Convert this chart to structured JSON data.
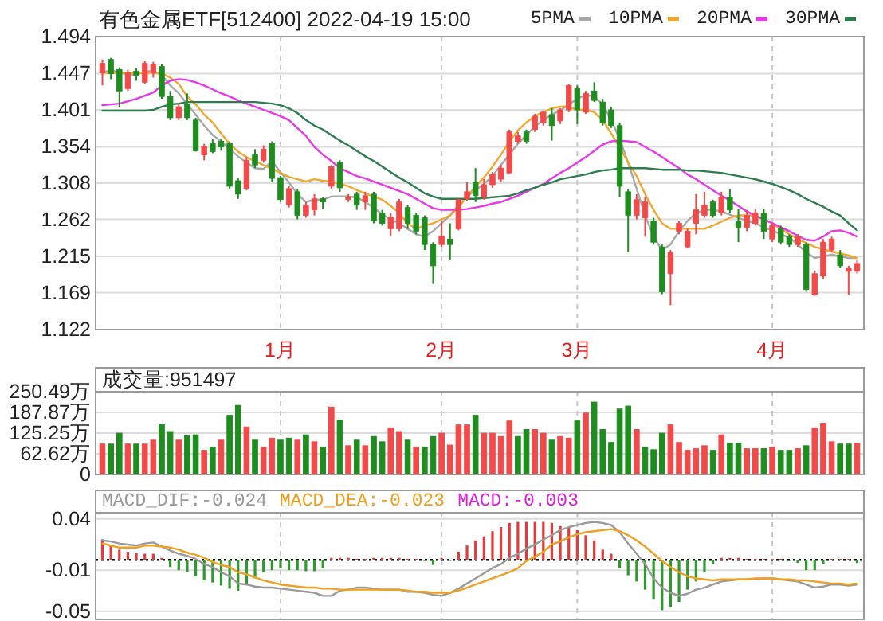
{
  "chart_data": [
    {
      "type": "candlestick",
      "title": "有色金属ETF[512400]  2022-04-19 15:00",
      "legend": "top right",
      "grid": true,
      "categories": [
        null,
        null,
        null,
        null,
        null,
        null,
        null,
        null,
        null,
        null,
        null,
        null,
        null,
        null,
        null,
        null,
        null,
        null,
        null,
        null,
        null,
        "1月",
        null,
        null,
        null,
        null,
        null,
        null,
        null,
        null,
        null,
        null,
        null,
        null,
        null,
        null,
        null,
        null,
        null,
        null,
        "2月",
        null,
        null,
        null,
        null,
        null,
        null,
        null,
        null,
        null,
        null,
        null,
        null,
        null,
        null,
        null,
        "3月",
        null,
        null,
        null,
        null,
        null,
        null,
        null,
        null,
        null,
        null,
        null,
        null,
        null,
        null,
        null,
        null,
        null,
        null,
        null,
        null,
        null,
        null,
        "4月",
        null,
        null,
        null,
        null,
        null,
        null,
        null,
        null,
        null,
        null
      ],
      "ohlc": [
        [
          1.448,
          1.465,
          1.432,
          1.46
        ],
        [
          1.465,
          1.467,
          1.44,
          1.447
        ],
        [
          1.452,
          1.455,
          1.405,
          1.425
        ],
        [
          1.428,
          1.452,
          1.425,
          1.448
        ],
        [
          1.45,
          1.454,
          1.438,
          1.445
        ],
        [
          1.436,
          1.463,
          1.434,
          1.46
        ],
        [
          1.448,
          1.462,
          1.442,
          1.459
        ],
        [
          1.456,
          1.459,
          1.415,
          1.418
        ],
        [
          1.418,
          1.425,
          1.388,
          1.391
        ],
        [
          1.391,
          1.409,
          1.388,
          1.405
        ],
        [
          1.408,
          1.422,
          1.388,
          1.391
        ],
        [
          1.388,
          1.391,
          1.348,
          1.349
        ],
        [
          1.344,
          1.358,
          1.337,
          1.354
        ],
        [
          1.358,
          1.364,
          1.346,
          1.348
        ],
        [
          1.361,
          1.364,
          1.349,
          1.354
        ],
        [
          1.358,
          1.361,
          1.301,
          1.304
        ],
        [
          1.311,
          1.314,
          1.288,
          1.294
        ],
        [
          1.301,
          1.341,
          1.299,
          1.337
        ],
        [
          1.344,
          1.351,
          1.327,
          1.331
        ],
        [
          1.337,
          1.356,
          1.334,
          1.351
        ],
        [
          1.358,
          1.361,
          1.309,
          1.314
        ],
        [
          1.315,
          1.317,
          1.284,
          1.287
        ],
        [
          1.28,
          1.304,
          1.277,
          1.301
        ],
        [
          1.297,
          1.301,
          1.262,
          1.267
        ],
        [
          1.267,
          1.284,
          1.264,
          1.28
        ],
        [
          1.274,
          1.294,
          1.267,
          1.288
        ],
        [
          1.288,
          1.29,
          1.275,
          1.284
        ],
        [
          1.304,
          1.331,
          1.301,
          1.329
        ],
        [
          1.334,
          1.337,
          1.297,
          1.302
        ],
        [
          1.287,
          1.294,
          1.284,
          1.29
        ],
        [
          1.294,
          1.297,
          1.274,
          1.28
        ],
        [
          1.284,
          1.297,
          1.274,
          1.292
        ],
        [
          1.294,
          1.297,
          1.257,
          1.26
        ],
        [
          1.27,
          1.274,
          1.254,
          1.257
        ],
        [
          1.25,
          1.27,
          1.241,
          1.265
        ],
        [
          1.25,
          1.288,
          1.247,
          1.284
        ],
        [
          1.277,
          1.28,
          1.25,
          1.257
        ],
        [
          1.267,
          1.27,
          1.243,
          1.247
        ],
        [
          1.264,
          1.267,
          1.223,
          1.23
        ],
        [
          1.23,
          1.233,
          1.18,
          1.203
        ],
        [
          1.23,
          1.26,
          1.227,
          1.241
        ],
        [
          1.237,
          1.257,
          1.21,
          1.23
        ],
        [
          1.25,
          1.288,
          1.248,
          1.287
        ],
        [
          1.288,
          1.309,
          1.286,
          1.297
        ],
        [
          1.309,
          1.327,
          1.284,
          1.292
        ],
        [
          1.29,
          1.313,
          1.287,
          1.306
        ],
        [
          1.306,
          1.322,
          1.302,
          1.319
        ],
        [
          1.313,
          1.331,
          1.309,
          1.327
        ],
        [
          1.321,
          1.376,
          1.319,
          1.373
        ],
        [
          1.361,
          1.373,
          1.358,
          1.368
        ],
        [
          1.373,
          1.376,
          1.358,
          1.361
        ],
        [
          1.376,
          1.396,
          1.373,
          1.393
        ],
        [
          1.385,
          1.4,
          1.381,
          1.398
        ],
        [
          1.395,
          1.403,
          1.362,
          1.381
        ],
        [
          1.387,
          1.403,
          1.383,
          1.401
        ],
        [
          1.401,
          1.434,
          1.398,
          1.432
        ],
        [
          1.428,
          1.432,
          1.383,
          1.401
        ],
        [
          1.398,
          1.425,
          1.396,
          1.422
        ],
        [
          1.425,
          1.436,
          1.411,
          1.413
        ],
        [
          1.411,
          1.415,
          1.381,
          1.385
        ],
        [
          1.401,
          1.405,
          1.378,
          1.381
        ],
        [
          1.381,
          1.385,
          1.29,
          1.304
        ],
        [
          1.297,
          1.301,
          1.22,
          1.267
        ],
        [
          1.267,
          1.294,
          1.262,
          1.287
        ],
        [
          1.264,
          1.29,
          1.24,
          1.284
        ],
        [
          1.26,
          1.264,
          1.23,
          1.233
        ],
        [
          1.227,
          1.23,
          1.167,
          1.17
        ],
        [
          1.193,
          1.223,
          1.153,
          1.22
        ],
        [
          1.247,
          1.26,
          1.243,
          1.257
        ],
        [
          1.227,
          1.25,
          1.225,
          1.247
        ],
        [
          1.257,
          1.294,
          1.243,
          1.274
        ],
        [
          1.267,
          1.297,
          1.264,
          1.28
        ],
        [
          1.284,
          1.287,
          1.264,
          1.267
        ],
        [
          1.27,
          1.297,
          1.267,
          1.29
        ],
        [
          1.29,
          1.301,
          1.27,
          1.274
        ],
        [
          1.26,
          1.275,
          1.233,
          1.252
        ],
        [
          1.252,
          1.274,
          1.247,
          1.267
        ],
        [
          1.257,
          1.275,
          1.254,
          1.27
        ],
        [
          1.27,
          1.275,
          1.237,
          1.247
        ],
        [
          1.237,
          1.257,
          1.233,
          1.254
        ],
        [
          1.25,
          1.254,
          1.23,
          1.233
        ],
        [
          1.24,
          1.243,
          1.227,
          1.23
        ],
        [
          1.23,
          1.243,
          1.227,
          1.24
        ],
        [
          1.23,
          1.233,
          1.17,
          1.173
        ],
        [
          1.166,
          1.196,
          1.165,
          1.193
        ],
        [
          1.19,
          1.237,
          1.186,
          1.233
        ],
        [
          1.223,
          1.24,
          1.22,
          1.237
        ],
        [
          1.217,
          1.223,
          1.2,
          1.203
        ],
        [
          1.196,
          1.203,
          1.166,
          1.2
        ],
        [
          1.196,
          1.21,
          1.193,
          1.206
        ]
      ],
      "colors": [
        "#f04a4a",
        "#1e8c1e",
        "#1e8c1e",
        "#f04a4a",
        "#1e8c1e",
        "#f04a4a",
        "#f04a4a",
        "#1e8c1e",
        "#1e8c1e",
        "#f04a4a",
        "#1e8c1e",
        "#1e8c1e",
        "#f04a4a",
        "#1e8c1e",
        "#1e8c1e",
        "#1e8c1e",
        "#1e8c1e",
        "#f04a4a",
        "#1e8c1e",
        "#f04a4a",
        "#1e8c1e",
        "#1e8c1e",
        "#f04a4a",
        "#1e8c1e",
        "#f04a4a",
        "#f04a4a",
        "#1e8c1e",
        "#f04a4a",
        "#1e8c1e",
        "#f04a4a",
        "#1e8c1e",
        "#f04a4a",
        "#1e8c1e",
        "#1e8c1e",
        "#f04a4a",
        "#f04a4a",
        "#1e8c1e",
        "#1e8c1e",
        "#1e8c1e",
        "#1e8c1e",
        "#f04a4a",
        "#1e8c1e",
        "#f04a4a",
        "#f04a4a",
        "#1e8c1e",
        "#f04a4a",
        "#f04a4a",
        "#f04a4a",
        "#f04a4a",
        "#f04a4a",
        "#1e8c1e",
        "#f04a4a",
        "#f04a4a",
        "#1e8c1e",
        "#f04a4a",
        "#f04a4a",
        "#1e8c1e",
        "#f04a4a",
        "#1e8c1e",
        "#1e8c1e",
        "#1e8c1e",
        "#1e8c1e",
        "#1e8c1e",
        "#f04a4a",
        "#f04a4a",
        "#1e8c1e",
        "#1e8c1e",
        "#f04a4a",
        "#f04a4a",
        "#f04a4a",
        "#f04a4a",
        "#f04a4a",
        "#1e8c1e",
        "#f04a4a",
        "#1e8c1e",
        "#1e8c1e",
        "#f04a4a",
        "#f04a4a",
        "#1e8c1e",
        "#f04a4a",
        "#1e8c1e",
        "#1e8c1e",
        "#f04a4a",
        "#1e8c1e",
        "#f04a4a",
        "#f04a4a",
        "#f04a4a",
        "#1e8c1e",
        "#f04a4a",
        "#f04a4a"
      ],
      "series": [
        {
          "type": "line",
          "name": "5PMA",
          "color": "#a8a8a8",
          "values": [
            1.448,
            1.452,
            1.448,
            1.447,
            1.445,
            1.45,
            1.45,
            1.445,
            1.432,
            1.422,
            1.408,
            1.395,
            1.381,
            1.369,
            1.361,
            1.351,
            1.342,
            1.334,
            1.327,
            1.326,
            1.336,
            1.322,
            1.309,
            1.294,
            1.284,
            1.287,
            1.287,
            1.291,
            1.291,
            1.291,
            1.29,
            1.284,
            1.277,
            1.268,
            1.262,
            1.257,
            1.25,
            1.243,
            1.24,
            1.247,
            1.257,
            1.267,
            1.28,
            1.291,
            1.299,
            1.307,
            1.317,
            1.331,
            1.344,
            1.358,
            1.369,
            1.38,
            1.388,
            1.395,
            1.4,
            1.408,
            1.415,
            1.42,
            1.418,
            1.408,
            1.388,
            1.364,
            1.334,
            1.301,
            1.267,
            1.24,
            1.223,
            1.23,
            1.247,
            1.26,
            1.27,
            1.274,
            1.274,
            1.272,
            1.268,
            1.264,
            1.26,
            1.257,
            1.252,
            1.248,
            1.243,
            1.239,
            1.23,
            1.22,
            1.213,
            1.215,
            1.217,
            1.215,
            1.213,
            1.213
          ]
        },
        {
          "type": "line",
          "name": "10PMA",
          "color": "#f0a830",
          "values": [
            1.448,
            1.448,
            1.448,
            1.448,
            1.448,
            1.448,
            1.448,
            1.447,
            1.442,
            1.434,
            1.418,
            1.408,
            1.395,
            1.385,
            1.371,
            1.358,
            1.348,
            1.341,
            1.336,
            1.331,
            1.326,
            1.321,
            1.316,
            1.313,
            1.31,
            1.313,
            1.311,
            1.31,
            1.307,
            1.304,
            1.299,
            1.295,
            1.291,
            1.287,
            1.279,
            1.27,
            1.257,
            1.25,
            1.254,
            1.257,
            1.262,
            1.267,
            1.277,
            1.291,
            1.304,
            1.315,
            1.329,
            1.344,
            1.361,
            1.375,
            1.385,
            1.393,
            1.398,
            1.403,
            1.405,
            1.405,
            1.401,
            1.401,
            1.398,
            1.388,
            1.371,
            1.354,
            1.334,
            1.317,
            1.294,
            1.274,
            1.257,
            1.25,
            1.25,
            1.25,
            1.25,
            1.25,
            1.254,
            1.259,
            1.264,
            1.267,
            1.267,
            1.267,
            1.262,
            1.257,
            1.25,
            1.243,
            1.237,
            1.232,
            1.227,
            1.224,
            1.221,
            1.219,
            1.216,
            1.213
          ]
        },
        {
          "type": "line",
          "name": "20PMA",
          "color": "#e838e8",
          "values": [
            1.407,
            1.408,
            1.409,
            1.412,
            1.415,
            1.419,
            1.423,
            1.432,
            1.438,
            1.44,
            1.439,
            1.436,
            1.432,
            1.427,
            1.422,
            1.418,
            1.413,
            1.409,
            1.405,
            1.401,
            1.397,
            1.393,
            1.388,
            1.378,
            1.368,
            1.354,
            1.344,
            1.336,
            1.327,
            1.322,
            1.317,
            1.314,
            1.31,
            1.306,
            1.302,
            1.298,
            1.294,
            1.288,
            1.282,
            1.276,
            1.274,
            1.274,
            1.274,
            1.275,
            1.277,
            1.279,
            1.282,
            1.284,
            1.288,
            1.292,
            1.297,
            1.302,
            1.307,
            1.314,
            1.321,
            1.327,
            1.334,
            1.341,
            1.349,
            1.357,
            1.361,
            1.362,
            1.361,
            1.36,
            1.354,
            1.348,
            1.341,
            1.334,
            1.327,
            1.319,
            1.313,
            1.306,
            1.299,
            1.292,
            1.286,
            1.279,
            1.272,
            1.267,
            1.262,
            1.257,
            1.252,
            1.247,
            1.241,
            1.236,
            1.235,
            1.24,
            1.247,
            1.248,
            1.245,
            1.24
          ]
        },
        {
          "type": "line",
          "name": "30PMA",
          "color": "#2e7d4f",
          "values": [
            1.4,
            1.4,
            1.4,
            1.4,
            1.4,
            1.4,
            1.401,
            1.405,
            1.408,
            1.409,
            1.411,
            1.411,
            1.411,
            1.411,
            1.411,
            1.411,
            1.411,
            1.411,
            1.411,
            1.41,
            1.409,
            1.407,
            1.403,
            1.397,
            1.388,
            1.381,
            1.376,
            1.369,
            1.362,
            1.356,
            1.349,
            1.342,
            1.336,
            1.329,
            1.322,
            1.315,
            1.309,
            1.302,
            1.295,
            1.291,
            1.288,
            1.288,
            1.288,
            1.288,
            1.288,
            1.289,
            1.29,
            1.291,
            1.292,
            1.295,
            1.299,
            1.302,
            1.306,
            1.309,
            1.313,
            1.315,
            1.317,
            1.319,
            1.322,
            1.324,
            1.325,
            1.327,
            1.327,
            1.327,
            1.327,
            1.326,
            1.325,
            1.325,
            1.325,
            1.324,
            1.324,
            1.323,
            1.322,
            1.321,
            1.319,
            1.317,
            1.315,
            1.313,
            1.31,
            1.307,
            1.303,
            1.299,
            1.294,
            1.288,
            1.283,
            1.278,
            1.272,
            1.267,
            1.257,
            1.248
          ]
        }
      ],
      "ylim": [
        1.122,
        1.494
      ],
      "yticks": [
        1.494,
        1.447,
        1.401,
        1.354,
        1.308,
        1.262,
        1.215,
        1.169,
        1.122
      ]
    },
    {
      "type": "bar",
      "grid": true,
      "tick_labels": "y",
      "annotations": [
        "成交量:951497"
      ],
      "categories": [
        null,
        null,
        null,
        null,
        null,
        null,
        null,
        null,
        null,
        null,
        null,
        null,
        null,
        null,
        null,
        null,
        null,
        null,
        null,
        null,
        null,
        null,
        null,
        null,
        null,
        null,
        null,
        null,
        null,
        null,
        null,
        null,
        null,
        null,
        null,
        null,
        null,
        null,
        null,
        null,
        null,
        null,
        null,
        null,
        null,
        null,
        null,
        null,
        null,
        null,
        null,
        null,
        null,
        null,
        null,
        null,
        null,
        null,
        null,
        null,
        null,
        null,
        null,
        null,
        null,
        null,
        null,
        null,
        null,
        null,
        null,
        null,
        null,
        null,
        null,
        null,
        null,
        null,
        null,
        null,
        null,
        null,
        null,
        null,
        null,
        null,
        null,
        null,
        null,
        null
      ],
      "values": [
        92,
        92,
        125,
        92,
        92,
        92,
        104,
        151,
        130,
        104,
        117,
        120,
        73,
        83,
        104,
        179,
        209,
        144,
        104,
        83,
        110,
        104,
        110,
        104,
        120,
        99,
        83,
        204,
        165,
        87,
        104,
        87,
        115,
        99,
        141,
        130,
        104,
        83,
        83,
        115,
        125,
        89,
        150,
        150,
        179,
        125,
        125,
        115,
        162,
        115,
        136,
        136,
        125,
        104,
        115,
        110,
        162,
        186,
        219,
        136,
        97,
        198,
        207,
        136,
        83,
        75,
        125,
        150,
        97,
        73,
        78,
        87,
        73,
        120,
        94,
        94,
        78,
        78,
        78,
        83,
        73,
        73,
        78,
        87,
        141,
        155,
        99,
        92,
        92,
        95
      ],
      "colors": [
        "#f04a4a",
        "#1e8c1e",
        "#1e8c1e",
        "#f04a4a",
        "#1e8c1e",
        "#f04a4a",
        "#f04a4a",
        "#1e8c1e",
        "#1e8c1e",
        "#f04a4a",
        "#1e8c1e",
        "#1e8c1e",
        "#f04a4a",
        "#1e8c1e",
        "#f04a4a",
        "#1e8c1e",
        "#1e8c1e",
        "#f04a4a",
        "#1e8c1e",
        "#f04a4a",
        "#f04a4a",
        "#1e8c1e",
        "#1e8c1e",
        "#f04a4a",
        "#1e8c1e",
        "#f04a4a",
        "#1e8c1e",
        "#f04a4a",
        "#1e8c1e",
        "#f04a4a",
        "#1e8c1e",
        "#f04a4a",
        "#1e8c1e",
        "#1e8c1e",
        "#f04a4a",
        "#f04a4a",
        "#1e8c1e",
        "#f04a4a",
        "#1e8c1e",
        "#1e8c1e",
        "#f04a4a",
        "#f04a4a",
        "#f04a4a",
        "#f04a4a",
        "#1e8c1e",
        "#f04a4a",
        "#f04a4a",
        "#f04a4a",
        "#f04a4a",
        "#1e8c1e",
        "#1e8c1e",
        "#f04a4a",
        "#f04a4a",
        "#1e8c1e",
        "#f04a4a",
        "#f04a4a",
        "#1e8c1e",
        "#f04a4a",
        "#1e8c1e",
        "#1e8c1e",
        "#1e8c1e",
        "#1e8c1e",
        "#1e8c1e",
        "#f04a4a",
        "#1e8c1e",
        "#1e8c1e",
        "#1e8c1e",
        "#f04a4a",
        "#f04a4a",
        "#f04a4a",
        "#f04a4a",
        "#f04a4a",
        "#1e8c1e",
        "#f04a4a",
        "#1e8c1e",
        "#1e8c1e",
        "#f04a4a",
        "#f04a4a",
        "#1e8c1e",
        "#f04a4a",
        "#1e8c1e",
        "#1e8c1e",
        "#f04a4a",
        "#1e8c1e",
        "#f04a4a",
        "#f04a4a",
        "#f04a4a",
        "#1e8c1e",
        "#1e8c1e",
        "#f04a4a"
      ],
      "ylim": [
        0,
        250.49
      ],
      "yticks": [
        0,
        {
          "value": 62.62,
          "label": "62.62万"
        },
        {
          "value": 125.25,
          "label": "125.25万"
        },
        {
          "value": 187.87,
          "label": "187.87万"
        },
        {
          "value": 250.49,
          "label": "250.49万"
        }
      ]
    },
    {
      "type": "bar",
      "grid": true,
      "tick_labels": "y",
      "legend": "top left",
      "categories": [
        null,
        null,
        null,
        null,
        null,
        null,
        null,
        null,
        null,
        null,
        null,
        null,
        null,
        null,
        null,
        null,
        null,
        null,
        null,
        null,
        null,
        null,
        null,
        null,
        null,
        null,
        null,
        null,
        null,
        null,
        null,
        null,
        null,
        null,
        null,
        null,
        null,
        null,
        null,
        null,
        null,
        null,
        null,
        null,
        null,
        null,
        null,
        null,
        null,
        null,
        null,
        null,
        null,
        null,
        null,
        null,
        null,
        null,
        null,
        null,
        null,
        null,
        null,
        null,
        null,
        null,
        null,
        null,
        null,
        null,
        null,
        null,
        null,
        null,
        null,
        null,
        null,
        null,
        null,
        null,
        null,
        null,
        null,
        null,
        null,
        null,
        null,
        null,
        null,
        null
      ],
      "series": [
        {
          "type": "line",
          "name": "MACD_DIF:-0.024",
          "color": "#9a9a9a",
          "values": [
            0.019,
            0.018,
            0.016,
            0.015,
            0.014,
            0.016,
            0.017,
            0.013,
            0.009,
            0.006,
            0.004,
            0.001,
            -0.004,
            -0.007,
            -0.012,
            -0.016,
            -0.023,
            -0.024,
            -0.026,
            -0.027,
            -0.027,
            -0.028,
            -0.029,
            -0.03,
            -0.031,
            -0.032,
            -0.035,
            -0.035,
            -0.03,
            -0.029,
            -0.027,
            -0.027,
            -0.028,
            -0.029,
            -0.029,
            -0.029,
            -0.031,
            -0.031,
            -0.032,
            -0.034,
            -0.035,
            -0.032,
            -0.028,
            -0.023,
            -0.018,
            -0.013,
            -0.008,
            -0.004,
            0.002,
            0.006,
            0.011,
            0.015,
            0.02,
            0.024,
            0.029,
            0.032,
            0.034,
            0.036,
            0.037,
            0.036,
            0.034,
            0.027,
            0.016,
            0.006,
            -0.004,
            -0.018,
            -0.027,
            -0.032,
            -0.035,
            -0.033,
            -0.029,
            -0.027,
            -0.024,
            -0.021,
            -0.02,
            -0.019,
            -0.019,
            -0.019,
            -0.018,
            -0.018,
            -0.019,
            -0.02,
            -0.021,
            -0.024,
            -0.027,
            -0.026,
            -0.024,
            -0.024,
            -0.025,
            -0.024
          ]
        },
        {
          "type": "line",
          "name": "MACD_DEA:-0.023",
          "color": "#f0a020",
          "values": [
            0.016,
            0.014,
            0.012,
            0.012,
            0.012,
            0.014,
            0.014,
            0.013,
            0.012,
            0.01,
            0.007,
            0.005,
            0.002,
            -0.002,
            -0.005,
            -0.007,
            -0.012,
            -0.014,
            -0.017,
            -0.02,
            -0.022,
            -0.024,
            -0.025,
            -0.026,
            -0.027,
            -0.027,
            -0.028,
            -0.028,
            -0.029,
            -0.029,
            -0.029,
            -0.029,
            -0.029,
            -0.029,
            -0.029,
            -0.029,
            -0.03,
            -0.031,
            -0.031,
            -0.032,
            -0.032,
            -0.032,
            -0.03,
            -0.027,
            -0.024,
            -0.021,
            -0.018,
            -0.015,
            -0.012,
            -0.008,
            -0.001,
            0.003,
            0.008,
            0.015,
            0.018,
            0.022,
            0.025,
            0.027,
            0.028,
            0.029,
            0.03,
            0.028,
            0.024,
            0.019,
            0.013,
            0.006,
            -0.001,
            -0.007,
            -0.012,
            -0.016,
            -0.018,
            -0.019,
            -0.02,
            -0.019,
            -0.019,
            -0.019,
            -0.019,
            -0.018,
            -0.018,
            -0.018,
            -0.019,
            -0.019,
            -0.02,
            -0.02,
            -0.021,
            -0.022,
            -0.023,
            -0.023,
            -0.024,
            -0.023
          ]
        },
        {
          "type": "bar",
          "name": "MACD:-0.003",
          "color": "#e020e0",
          "values": [
            0.02,
            0.014,
            0.01,
            0.008,
            0.007,
            0.006,
            0.006,
            0.002,
            -0.007,
            -0.01,
            -0.012,
            -0.016,
            -0.02,
            -0.022,
            -0.025,
            -0.028,
            -0.03,
            -0.024,
            -0.018,
            -0.012,
            -0.01,
            -0.008,
            -0.01,
            -0.01,
            -0.011,
            -0.011,
            -0.008,
            0.002,
            0.002,
            0.002,
            0.001,
            0.001,
            0.002,
            0.002,
            0.002,
            0.002,
            0.001,
            0.001,
            -0.001,
            -0.005,
            0.002,
            -0.001,
            0.008,
            0.014,
            0.019,
            0.023,
            0.028,
            0.032,
            0.036,
            0.037,
            0.037,
            0.037,
            0.037,
            0.036,
            0.033,
            0.032,
            0.029,
            0.024,
            0.019,
            0.01,
            0.006,
            -0.008,
            -0.015,
            -0.021,
            -0.029,
            -0.038,
            -0.049,
            -0.046,
            -0.041,
            -0.029,
            -0.021,
            -0.012,
            -0.004,
            0.002,
            0.002,
            0.002,
            0.001,
            0.001,
            0.001,
            0.001,
            0.001,
            -0.001,
            -0.003,
            -0.01,
            -0.01,
            -0.004,
            0.001,
            0.001,
            0.001,
            -0.003
          ],
          "colors": [
            "#e03c3c",
            "#e03c3c",
            "#e03c3c",
            "#e03c3c",
            "#e03c3c",
            "#e03c3c",
            "#e03c3c",
            "#e03c3c",
            "#2e9a2e",
            "#2e9a2e",
            "#2e9a2e",
            "#2e9a2e",
            "#2e9a2e",
            "#2e9a2e",
            "#2e9a2e",
            "#2e9a2e",
            "#2e9a2e",
            "#2e9a2e",
            "#2e9a2e",
            "#2e9a2e",
            "#2e9a2e",
            "#2e9a2e",
            "#2e9a2e",
            "#2e9a2e",
            "#2e9a2e",
            "#2e9a2e",
            "#2e9a2e",
            "#e03c3c",
            "#e03c3c",
            "#e03c3c",
            "#e03c3c",
            "#e03c3c",
            "#e03c3c",
            "#e03c3c",
            "#e03c3c",
            "#e03c3c",
            "#e03c3c",
            "#e03c3c",
            "#2e9a2e",
            "#2e9a2e",
            "#e03c3c",
            "#2e9a2e",
            "#e03c3c",
            "#e03c3c",
            "#e03c3c",
            "#e03c3c",
            "#e03c3c",
            "#e03c3c",
            "#e03c3c",
            "#e03c3c",
            "#e03c3c",
            "#e03c3c",
            "#e03c3c",
            "#e03c3c",
            "#e03c3c",
            "#e03c3c",
            "#e03c3c",
            "#e03c3c",
            "#e03c3c",
            "#e03c3c",
            "#e03c3c",
            "#2e9a2e",
            "#2e9a2e",
            "#2e9a2e",
            "#2e9a2e",
            "#2e9a2e",
            "#2e9a2e",
            "#2e9a2e",
            "#2e9a2e",
            "#2e9a2e",
            "#2e9a2e",
            "#2e9a2e",
            "#2e9a2e",
            "#e03c3c",
            "#e03c3c",
            "#e03c3c",
            "#e03c3c",
            "#e03c3c",
            "#e03c3c",
            "#e03c3c",
            "#e03c3c",
            "#2e9a2e",
            "#2e9a2e",
            "#2e9a2e",
            "#2e9a2e",
            "#2e9a2e",
            "#e03c3c",
            "#e03c3c",
            "#e03c3c",
            "#2e9a2e"
          ]
        }
      ],
      "ref_lines": [
        {
          "axis": "y",
          "value": 0,
          "color": "#000000",
          "line_style": "dotted"
        }
      ],
      "ylim": [
        -0.058,
        0.046
      ],
      "yticks": [
        0.04,
        -0.01,
        -0.05
      ]
    }
  ]
}
